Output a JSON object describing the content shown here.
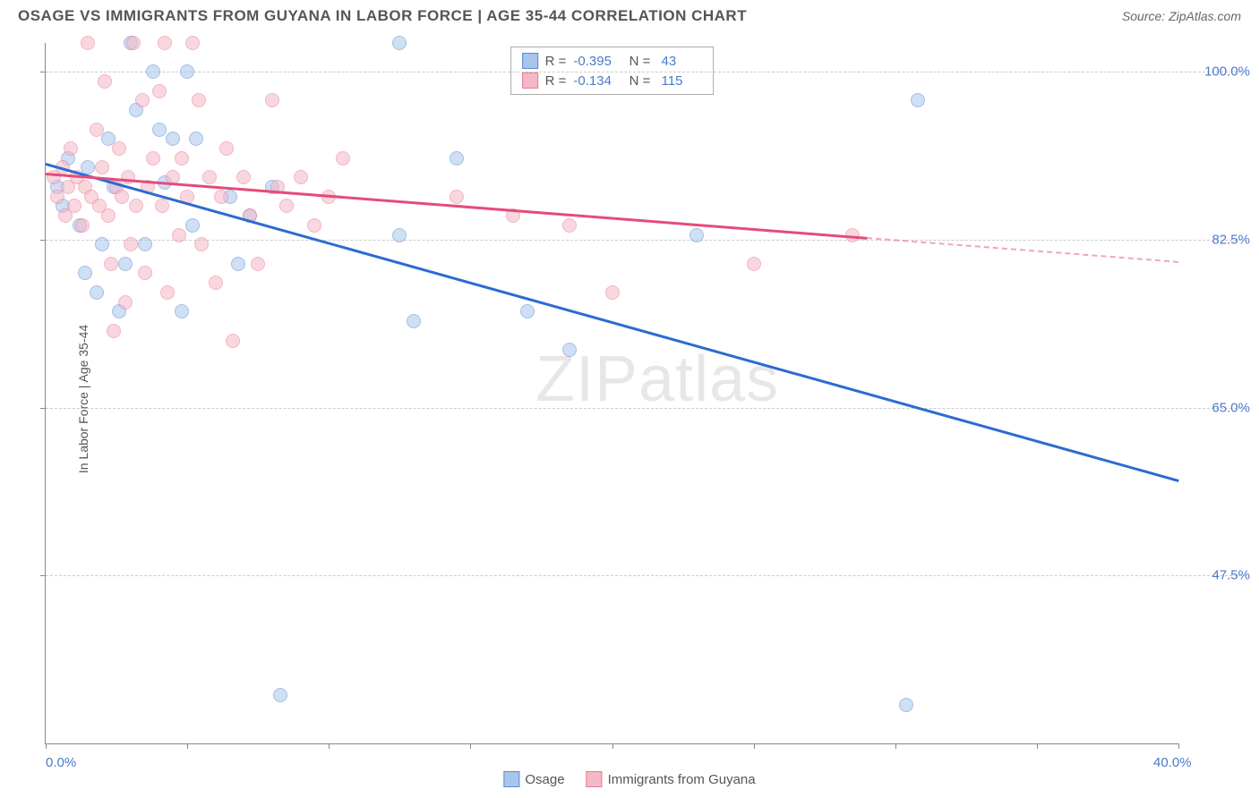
{
  "title": "OSAGE VS IMMIGRANTS FROM GUYANA IN LABOR FORCE | AGE 35-44 CORRELATION CHART",
  "source": "Source: ZipAtlas.com",
  "watermark": "ZIPatlas",
  "chart": {
    "type": "scatter",
    "ylabel": "In Labor Force | Age 35-44",
    "xlim": [
      0,
      40
    ],
    "ylim": [
      30,
      103
    ],
    "x_ticks": [
      0,
      5,
      10,
      15,
      20,
      25,
      30,
      35,
      40
    ],
    "x_tick_labels": {
      "0": "0.0%",
      "40": "40.0%"
    },
    "y_gridlines": [
      47.5,
      65.0,
      82.5,
      100.0
    ],
    "y_tick_labels": [
      "47.5%",
      "65.0%",
      "82.5%",
      "100.0%"
    ],
    "background_color": "#ffffff",
    "grid_color": "#cccccc",
    "axis_color": "#888888",
    "marker_radius": 8,
    "marker_opacity": 0.55,
    "series": [
      {
        "name": "Osage",
        "color_fill": "#a8c5ec",
        "color_stroke": "#5b8bd4",
        "line_color": "#2d6bd1",
        "R": "-0.395",
        "N": "43",
        "regression": {
          "x1": 0,
          "y1": 90.5,
          "x2": 40,
          "y2": 57.5
        },
        "points": [
          [
            0.4,
            88
          ],
          [
            0.6,
            86
          ],
          [
            0.8,
            91
          ],
          [
            1.2,
            84
          ],
          [
            1.4,
            79
          ],
          [
            1.5,
            90
          ],
          [
            1.8,
            77
          ],
          [
            2.0,
            82
          ],
          [
            2.2,
            93
          ],
          [
            2.4,
            88
          ],
          [
            2.6,
            75
          ],
          [
            2.8,
            80
          ],
          [
            3.0,
            103
          ],
          [
            3.2,
            96
          ],
          [
            3.5,
            82
          ],
          [
            3.8,
            100
          ],
          [
            4.0,
            94
          ],
          [
            4.2,
            88.5
          ],
          [
            4.5,
            93
          ],
          [
            5.0,
            100
          ],
          [
            5.2,
            84
          ],
          [
            5.3,
            93
          ],
          [
            4.8,
            75
          ],
          [
            6.5,
            87
          ],
          [
            6.8,
            80
          ],
          [
            7.2,
            85
          ],
          [
            8.0,
            88
          ],
          [
            8.3,
            35
          ],
          [
            12.5,
            103
          ],
          [
            12.5,
            83
          ],
          [
            13.0,
            74
          ],
          [
            14.5,
            91
          ],
          [
            17.0,
            75
          ],
          [
            18.5,
            71
          ],
          [
            23.0,
            83
          ],
          [
            30.4,
            34
          ],
          [
            30.8,
            97
          ]
        ]
      },
      {
        "name": "Immigrants from Guyana",
        "color_fill": "#f5b8c6",
        "color_stroke": "#e77a97",
        "line_color": "#e54b7a",
        "R": "-0.134",
        "N": "115",
        "regression": {
          "x1": 0,
          "y1": 89.5,
          "x2": 29,
          "y2": 82.8,
          "dash_x2": 40,
          "dash_y2": 80.3
        },
        "points": [
          [
            0.3,
            89
          ],
          [
            0.4,
            87
          ],
          [
            0.6,
            90
          ],
          [
            0.7,
            85
          ],
          [
            0.8,
            88
          ],
          [
            0.9,
            92
          ],
          [
            1.0,
            86
          ],
          [
            1.1,
            89
          ],
          [
            1.3,
            84
          ],
          [
            1.4,
            88
          ],
          [
            1.5,
            103
          ],
          [
            1.6,
            87
          ],
          [
            1.8,
            94
          ],
          [
            1.9,
            86
          ],
          [
            2.0,
            90
          ],
          [
            2.1,
            99
          ],
          [
            2.2,
            85
          ],
          [
            2.3,
            80
          ],
          [
            2.4,
            73
          ],
          [
            2.5,
            88
          ],
          [
            2.6,
            92
          ],
          [
            2.7,
            87
          ],
          [
            2.8,
            76
          ],
          [
            2.9,
            89
          ],
          [
            3.0,
            82
          ],
          [
            3.1,
            103
          ],
          [
            3.2,
            86
          ],
          [
            3.4,
            97
          ],
          [
            3.5,
            79
          ],
          [
            3.6,
            88
          ],
          [
            3.8,
            91
          ],
          [
            4.0,
            98
          ],
          [
            4.1,
            86
          ],
          [
            4.2,
            103
          ],
          [
            4.3,
            77
          ],
          [
            4.5,
            89
          ],
          [
            4.7,
            83
          ],
          [
            4.8,
            91
          ],
          [
            5.0,
            87
          ],
          [
            5.2,
            103
          ],
          [
            5.4,
            97
          ],
          [
            5.5,
            82
          ],
          [
            5.8,
            89
          ],
          [
            6.0,
            78
          ],
          [
            6.2,
            87
          ],
          [
            6.4,
            92
          ],
          [
            6.6,
            72
          ],
          [
            7.0,
            89
          ],
          [
            7.2,
            85
          ],
          [
            7.5,
            80
          ],
          [
            8.0,
            97
          ],
          [
            8.2,
            88
          ],
          [
            8.5,
            86
          ],
          [
            9.0,
            89
          ],
          [
            9.5,
            84
          ],
          [
            10.0,
            87
          ],
          [
            10.5,
            91
          ],
          [
            14.5,
            87
          ],
          [
            16.5,
            85
          ],
          [
            18.5,
            84
          ],
          [
            20.0,
            77
          ],
          [
            25.0,
            80
          ],
          [
            28.5,
            83
          ]
        ]
      }
    ]
  },
  "legend_bottom": {
    "items": [
      {
        "label": "Osage",
        "fill": "#a8c5ec",
        "stroke": "#5b8bd4"
      },
      {
        "label": "Immigrants from Guyana",
        "fill": "#f5b8c6",
        "stroke": "#e77a97"
      }
    ]
  }
}
